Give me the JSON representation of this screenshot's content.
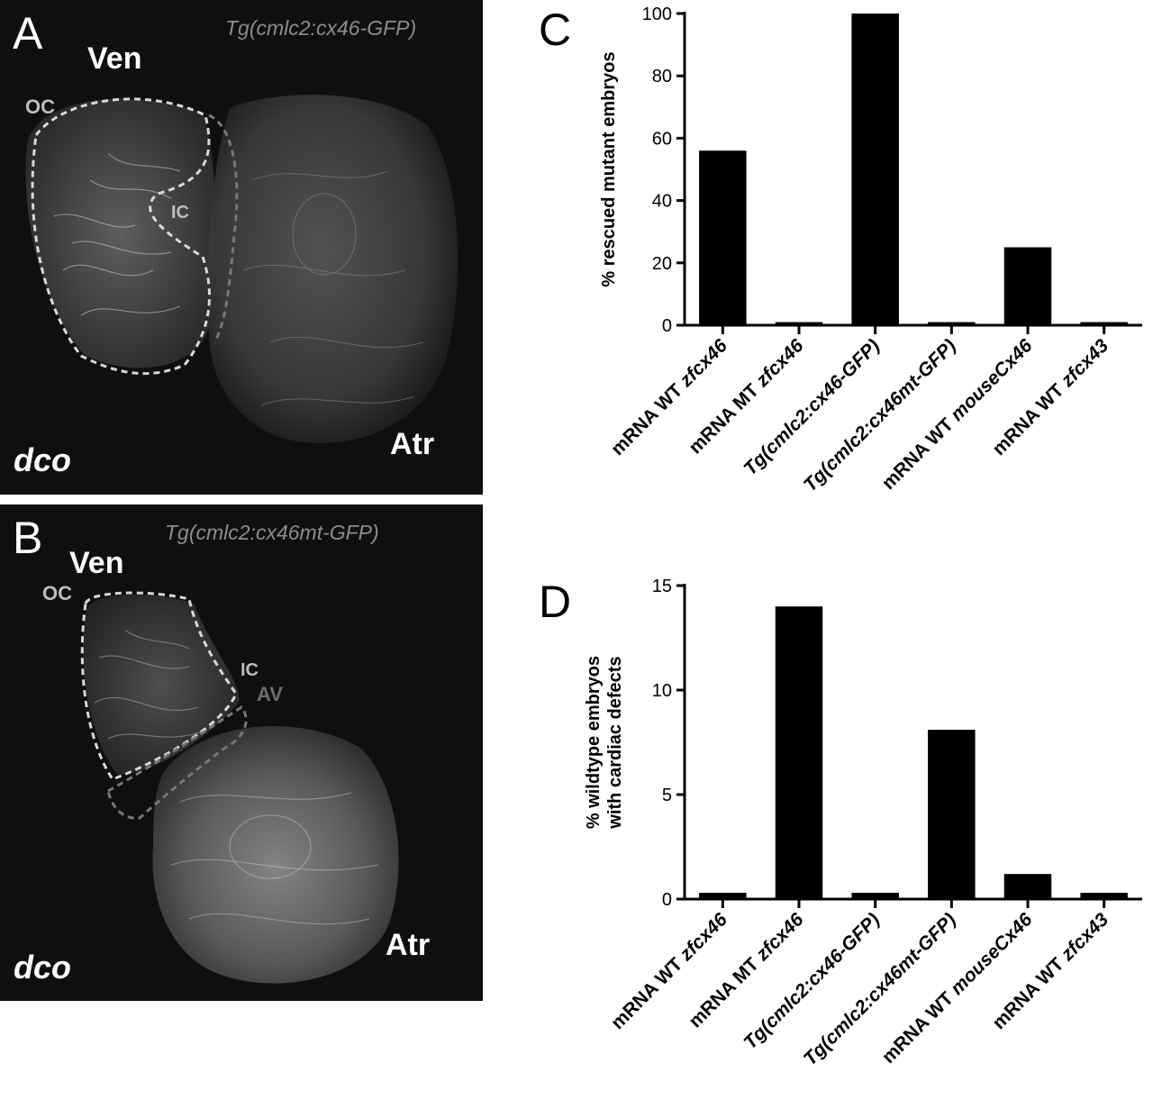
{
  "figure": {
    "panel_A": {
      "letter": "A",
      "construct": "Tg(cmlc2:cx46-GFP)",
      "ventricle": "Ven",
      "atrium": "Atr",
      "genotype": "dco",
      "outer_curvature": "OC",
      "inner_curvature": "IC"
    },
    "panel_B": {
      "letter": "B",
      "construct": "Tg(cmlc2:cx46mt-GFP)",
      "ventricle": "Ven",
      "atrium": "Atr",
      "genotype": "dco",
      "outer_curvature": "OC",
      "inner_curvature": "IC",
      "av_canal": "AV"
    },
    "panel_C_letter": "C",
    "panel_D_letter": "D"
  },
  "chart_data": [
    {
      "panel": "C",
      "type": "bar",
      "title": "",
      "xlabel": "",
      "ylabel": "% rescued mutant embryos",
      "categories": [
        "mRNA WT zfcx46",
        "mRNA MT zfcx46",
        "Tg(cmlc2:cx46-GFP)",
        "Tg(cmlc2:cx46mt-GFP)",
        "mRNA WT mouseCx46",
        "mRNA WT zfcx43"
      ],
      "values": [
        56,
        1,
        100,
        1,
        25,
        1
      ],
      "ylim": [
        0,
        100
      ],
      "yticks": [
        "0",
        "20",
        "40",
        "60",
        "80",
        "100"
      ],
      "grid": false,
      "bar_color": "#000000"
    },
    {
      "panel": "D",
      "type": "bar",
      "title": "",
      "xlabel": "",
      "ylabel": "% wildtype embryos with cardiac defects",
      "categories": [
        "mRNA WT zfcx46",
        "mRNA MT zfcx46",
        "Tg(cmlc2:cx46-GFP)",
        "Tg(cmlc2:cx46mt-GFP)",
        "mRNA WT mouseCx46",
        "mRNA WT zfcx43"
      ],
      "values": [
        0.3,
        14,
        0.3,
        8.1,
        1.2,
        0.3
      ],
      "ylim": [
        0,
        15
      ],
      "yticks": [
        "0",
        "5",
        "10",
        "15"
      ],
      "grid": false,
      "bar_color": "#000000"
    }
  ]
}
